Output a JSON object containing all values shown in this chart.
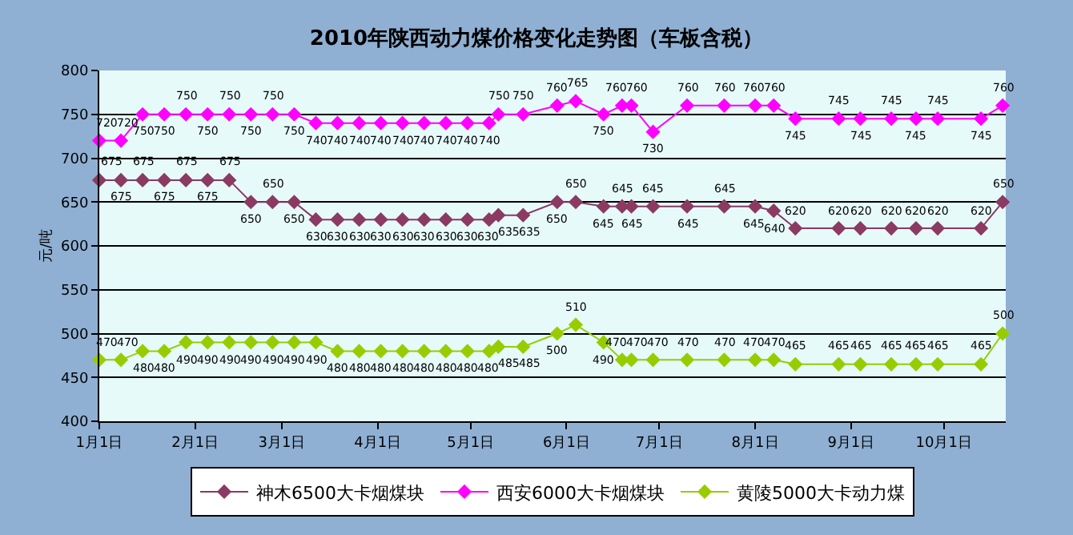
{
  "chart_data": {
    "type": "line",
    "title": "2010年陕西动力煤价格变化走势图（车板含税）",
    "ylabel": "元/吨",
    "x": [
      "2010-01-01",
      "2010-01-08",
      "2010-01-15",
      "2010-01-22",
      "2010-01-29",
      "2010-02-05",
      "2010-02-12",
      "2010-02-19",
      "2010-02-26",
      "2010-03-05",
      "2010-03-12",
      "2010-03-19",
      "2010-03-26",
      "2010-04-02",
      "2010-04-09",
      "2010-04-16",
      "2010-04-23",
      "2010-04-30",
      "2010-05-07",
      "2010-05-10",
      "2010-05-18",
      "2010-05-29",
      "2010-06-04",
      "2010-06-13",
      "2010-06-19",
      "2010-06-22",
      "2010-06-29",
      "2010-07-10",
      "2010-07-22",
      "2010-08-01",
      "2010-08-07",
      "2010-08-14",
      "2010-08-28",
      "2010-09-04",
      "2010-09-14",
      "2010-09-22",
      "2010-09-29",
      "2010-10-13",
      "2010-10-20"
    ],
    "series": [
      {
        "name": "神木6500大卡烟煤块",
        "color": "#8b3a62",
        "values": [
          675,
          675,
          675,
          675,
          675,
          675,
          675,
          650,
          650,
          650,
          630,
          630,
          630,
          630,
          630,
          630,
          630,
          630,
          630,
          635,
          635,
          650,
          650,
          645,
          645,
          645,
          645,
          645,
          645,
          645,
          640,
          620,
          620,
          620,
          620,
          620,
          620,
          620,
          650
        ]
      },
      {
        "name": "西安6000大卡烟煤块",
        "color": "#ff00ff",
        "values": [
          720,
          720,
          750,
          750,
          750,
          750,
          750,
          750,
          750,
          750,
          740,
          740,
          740,
          740,
          740,
          740,
          740,
          740,
          740,
          750,
          750,
          760,
          765,
          750,
          760,
          760,
          730,
          760,
          760,
          760,
          760,
          745,
          745,
          745,
          745,
          745,
          745,
          745,
          760
        ]
      },
      {
        "name": "黄陵5000大卡动力煤",
        "color": "#99cc00",
        "values": [
          470,
          470,
          480,
          480,
          490,
          490,
          490,
          490,
          490,
          490,
          490,
          480,
          480,
          480,
          480,
          480,
          480,
          480,
          480,
          485,
          485,
          500,
          510,
          490,
          470,
          470,
          470,
          470,
          470,
          470,
          470,
          465,
          465,
          465,
          465,
          465,
          465,
          465,
          500
        ]
      }
    ],
    "xlim": [
      "2010-01-01",
      "2010-10-21"
    ],
    "xticks": [
      {
        "value": "2010-01-01",
        "label": "1月1日"
      },
      {
        "value": "2010-02-01",
        "label": "2月1日"
      },
      {
        "value": "2010-03-01",
        "label": "3月1日"
      },
      {
        "value": "2010-04-01",
        "label": "4月1日"
      },
      {
        "value": "2010-05-01",
        "label": "5月1日"
      },
      {
        "value": "2010-06-01",
        "label": "6月1日"
      },
      {
        "value": "2010-07-01",
        "label": "7月1日"
      },
      {
        "value": "2010-08-01",
        "label": "8月1日"
      },
      {
        "value": "2010-09-01",
        "label": "9月1日"
      },
      {
        "value": "2010-10-01",
        "label": "10月1日"
      }
    ],
    "ylim": [
      400,
      800
    ],
    "yticks": [
      400,
      450,
      500,
      550,
      600,
      650,
      700,
      750,
      800
    ],
    "grid": "y",
    "legend": "bottom",
    "marker": "diamond",
    "line_style": "solid",
    "data_labels": true
  }
}
